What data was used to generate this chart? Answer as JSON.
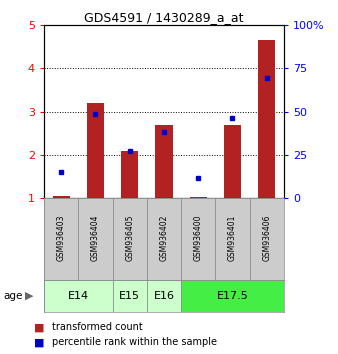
{
  "title": "GDS4591 / 1430289_a_at",
  "samples": [
    "GSM936403",
    "GSM936404",
    "GSM936405",
    "GSM936402",
    "GSM936400",
    "GSM936401",
    "GSM936406"
  ],
  "transformed_count": [
    1.05,
    3.2,
    2.1,
    2.68,
    1.02,
    2.7,
    4.65
  ],
  "percentile_rank": [
    1.6,
    2.95,
    2.1,
    2.52,
    1.47,
    2.85,
    3.77
  ],
  "bar_color": "#b22222",
  "dot_color": "#0000cc",
  "ylim_left": [
    1,
    5
  ],
  "ylim_right": [
    0,
    100
  ],
  "yticks_left": [
    1,
    2,
    3,
    4,
    5
  ],
  "yticks_right": [
    0,
    25,
    50,
    75,
    100
  ],
  "ytick_labels_right": [
    "0",
    "25",
    "50",
    "75",
    "100%"
  ],
  "age_groups": [
    {
      "label": "E14",
      "samples": [
        0,
        1
      ],
      "color": "#ccffcc"
    },
    {
      "label": "E15",
      "samples": [
        2
      ],
      "color": "#ccffcc"
    },
    {
      "label": "E16",
      "samples": [
        3
      ],
      "color": "#ccffcc"
    },
    {
      "label": "E17.5",
      "samples": [
        4,
        5,
        6
      ],
      "color": "#44ee44"
    }
  ],
  "label_red": "transformed count",
  "label_blue": "percentile rank within the sample",
  "bar_width": 0.5
}
